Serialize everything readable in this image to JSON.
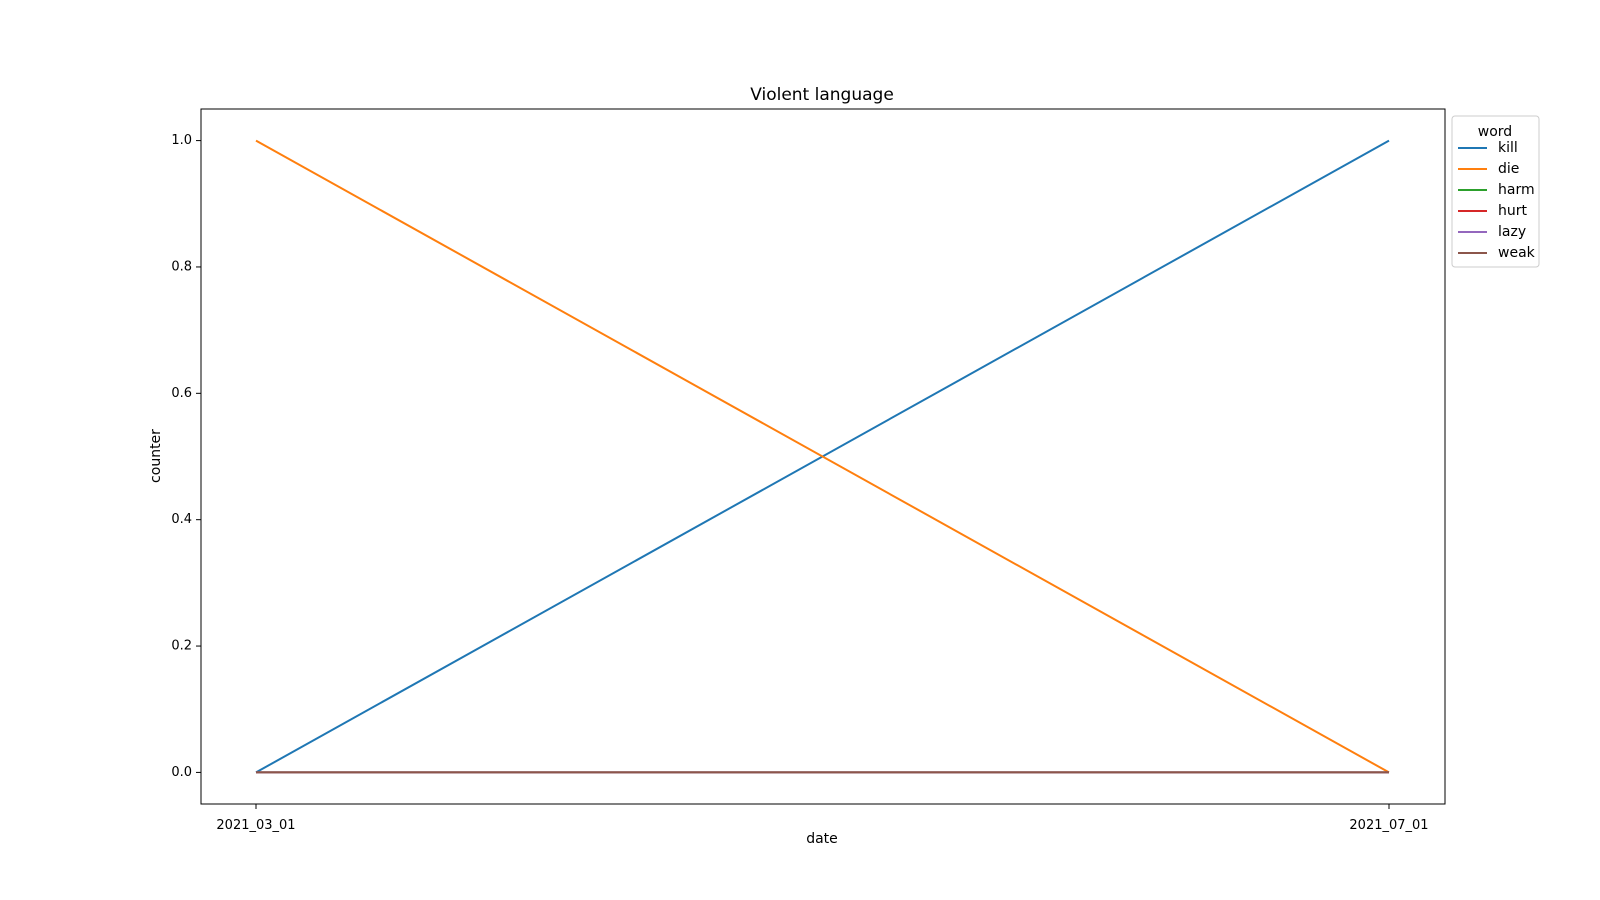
{
  "chart_data": {
    "type": "line",
    "title": "Violent language",
    "xlabel": "date",
    "ylabel": "counter",
    "x": [
      "2021_03_01",
      "2021_07_01"
    ],
    "ylim": [
      -0.05,
      1.05
    ],
    "y_ticks": [
      0.0,
      0.2,
      0.4,
      0.6,
      0.8,
      1.0
    ],
    "y_tick_labels": [
      "0.0",
      "0.2",
      "0.4",
      "0.6",
      "0.8",
      "1.0"
    ],
    "grid": false,
    "legend": {
      "title": "word",
      "placement": "outside-upper-right"
    },
    "series": [
      {
        "name": "kill",
        "color": "#1f77b4",
        "values": [
          0,
          1
        ]
      },
      {
        "name": "die",
        "color": "#ff7f0e",
        "values": [
          1,
          0
        ]
      },
      {
        "name": "harm",
        "color": "#2ca02c",
        "values": [
          0,
          0
        ]
      },
      {
        "name": "hurt",
        "color": "#d62728",
        "values": [
          0,
          0
        ]
      },
      {
        "name": "lazy",
        "color": "#9467bd",
        "values": [
          0,
          0
        ]
      },
      {
        "name": "weak",
        "color": "#8c564b",
        "values": [
          0,
          0
        ]
      }
    ]
  }
}
